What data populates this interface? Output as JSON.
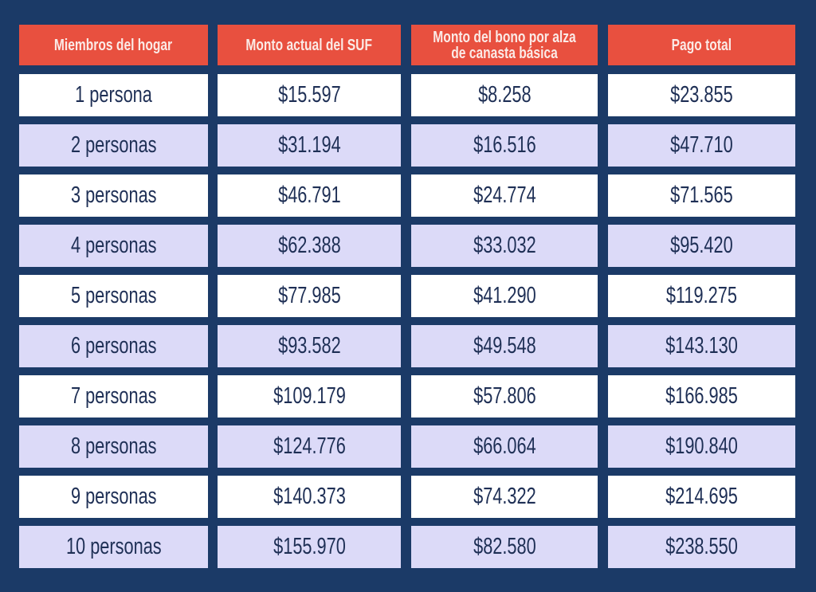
{
  "headers": [
    "Miembros del hogar",
    "Monto actual del SUF",
    "Monto del bono por alza de canasta básica",
    "Pago total"
  ],
  "rows": [
    [
      "1 persona",
      "$15.597",
      "$8.258",
      "$23.855"
    ],
    [
      "2 personas",
      "$31.194",
      "$16.516",
      "$47.710"
    ],
    [
      "3 personas",
      "$46.791",
      "$24.774",
      "$71.565"
    ],
    [
      "4 personas",
      "$62.388",
      "$33.032",
      "$95.420"
    ],
    [
      "5 personas",
      "$77.985",
      "$41.290",
      "$119.275"
    ],
    [
      "6 personas",
      "$93.582",
      "$49.548",
      "$143.130"
    ],
    [
      "7 personas",
      "$109.179",
      "$57.806",
      "$166.985"
    ],
    [
      "8 personas",
      "$124.776",
      "$66.064",
      "$190.840"
    ],
    [
      "9 personas",
      "$140.373",
      "$74.322",
      "$214.695"
    ],
    [
      "10 personas",
      "$155.970",
      "$82.580",
      "$238.550"
    ]
  ],
  "colors": {
    "background": "#1b3a67",
    "header": "#e8503f",
    "row_alt": "#dcdaf8",
    "text": "#1e2f55"
  }
}
